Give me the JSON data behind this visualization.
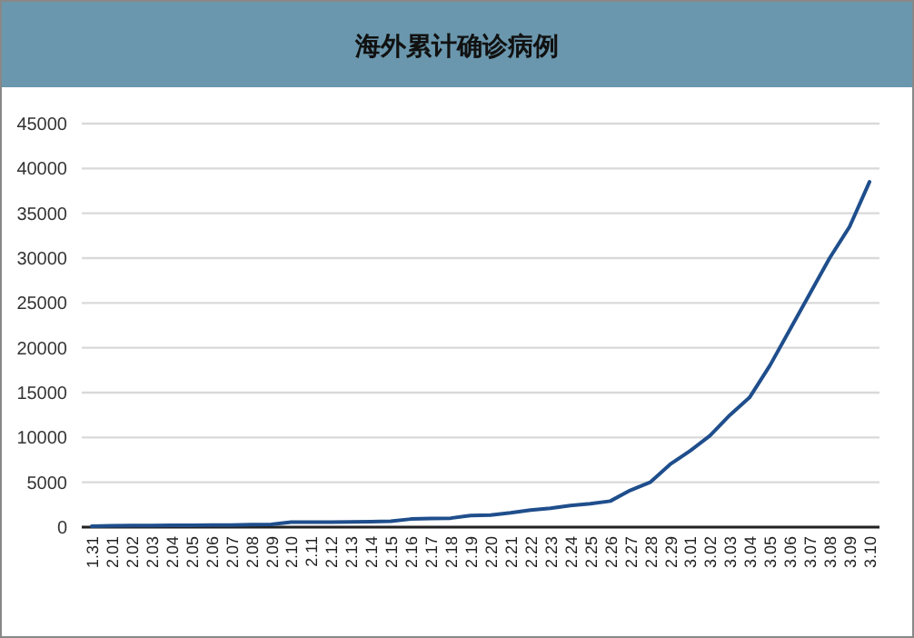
{
  "chart_data": {
    "type": "line",
    "title": "海外累计确诊病例",
    "categories": [
      "1.31",
      "2.01",
      "2.02",
      "2.03",
      "2.04",
      "2.05",
      "2.06",
      "2.07",
      "2.08",
      "2.09",
      "2.10",
      "2.11",
      "2.12",
      "2.13",
      "2.14",
      "2.15",
      "2.16",
      "2.17",
      "2.18",
      "2.19",
      "2.20",
      "2.21",
      "2.22",
      "2.23",
      "2.24",
      "2.25",
      "2.26",
      "2.27",
      "2.28",
      "2.29",
      "3.01",
      "3.02",
      "3.03",
      "3.04",
      "3.05",
      "3.06",
      "3.07",
      "3.08",
      "3.09",
      "3.10"
    ],
    "series": [
      {
        "color": "#1f4e8c",
        "values": [
          100,
          150,
          170,
          180,
          190,
          200,
          220,
          240,
          270,
          300,
          550,
          550,
          560,
          580,
          600,
          650,
          900,
          950,
          1000,
          1300,
          1350,
          1600,
          1900,
          2100,
          2400,
          2600,
          2900,
          4100,
          5000,
          7000,
          8500,
          10200,
          12500,
          14500,
          18000,
          22000,
          26000,
          30000,
          33500,
          38500
        ]
      }
    ],
    "ylim": [
      0,
      45000
    ],
    "yticks": [
      0,
      5000,
      10000,
      15000,
      20000,
      25000,
      30000,
      35000,
      40000,
      45000
    ],
    "grid": "y"
  }
}
